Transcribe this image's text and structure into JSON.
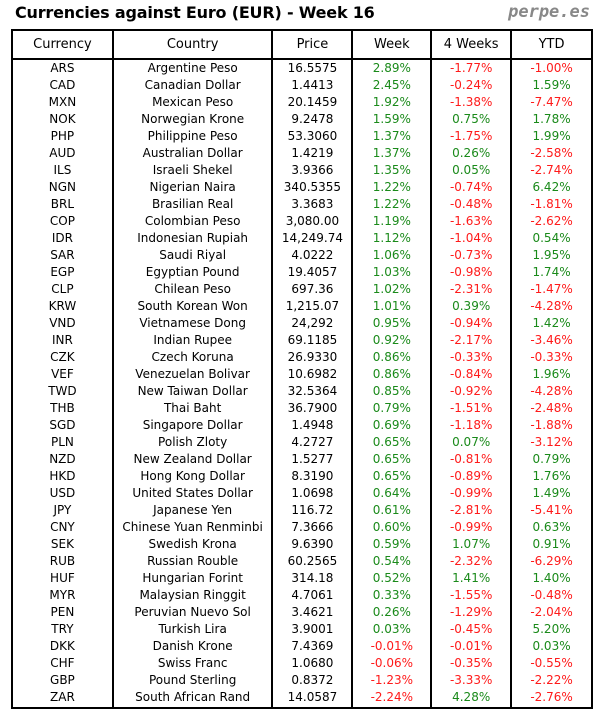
{
  "title": "Currencies against Euro (EUR) - Week 16",
  "brand": "perpe.es",
  "colors": {
    "positive": "#1a8a1a",
    "negative": "#ff1a1a",
    "text": "#000000"
  },
  "columns": [
    "Currency",
    "Country",
    "Price",
    "Week",
    "4 Weeks",
    "YTD"
  ],
  "rows": [
    [
      "ARS",
      "Argentine Peso",
      "16.5575",
      "2.89%",
      "-1.77%",
      "-1.00%"
    ],
    [
      "CAD",
      "Canadian Dollar",
      "1.4413",
      "2.45%",
      "-0.24%",
      "1.59%"
    ],
    [
      "MXN",
      "Mexican Peso",
      "20.1459",
      "1.92%",
      "-1.38%",
      "-7.47%"
    ],
    [
      "NOK",
      "Norwegian Krone",
      "9.2478",
      "1.59%",
      "0.75%",
      "1.78%"
    ],
    [
      "PHP",
      "Philippine Peso",
      "53.3060",
      "1.37%",
      "-1.75%",
      "1.99%"
    ],
    [
      "AUD",
      "Australian Dollar",
      "1.4219",
      "1.37%",
      "0.26%",
      "-2.58%"
    ],
    [
      "ILS",
      "Israeli Shekel",
      "3.9366",
      "1.35%",
      "0.05%",
      "-2.74%"
    ],
    [
      "NGN",
      "Nigerian Naira",
      "340.5355",
      "1.22%",
      "-0.74%",
      "6.42%"
    ],
    [
      "BRL",
      "Brasilian Real",
      "3.3683",
      "1.22%",
      "-0.48%",
      "-1.81%"
    ],
    [
      "COP",
      "Colombian Peso",
      "3,080.00",
      "1.19%",
      "-1.63%",
      "-2.62%"
    ],
    [
      "IDR",
      "Indonesian Rupiah",
      "14,249.74",
      "1.12%",
      "-1.04%",
      "0.54%"
    ],
    [
      "SAR",
      "Saudi Riyal",
      "4.0222",
      "1.06%",
      "-0.73%",
      "1.95%"
    ],
    [
      "EGP",
      "Egyptian Pound",
      "19.4057",
      "1.03%",
      "-0.98%",
      "1.74%"
    ],
    [
      "CLP",
      "Chilean Peso",
      "697.36",
      "1.02%",
      "-2.31%",
      "-1.47%"
    ],
    [
      "KRW",
      "South Korean Won",
      "1,215.07",
      "1.01%",
      "0.39%",
      "-4.28%"
    ],
    [
      "VND",
      "Vietnamese Dong",
      "24,292",
      "0.95%",
      "-0.94%",
      "1.42%"
    ],
    [
      "INR",
      "Indian Rupee",
      "69.1185",
      "0.92%",
      "-2.17%",
      "-3.46%"
    ],
    [
      "CZK",
      "Czech Koruna",
      "26.9330",
      "0.86%",
      "-0.33%",
      "-0.33%"
    ],
    [
      "VEF",
      "Venezuelan Bolivar",
      "10.6982",
      "0.86%",
      "-0.84%",
      "1.96%"
    ],
    [
      "TWD",
      "New Taiwan Dollar",
      "32.5364",
      "0.85%",
      "-0.92%",
      "-4.28%"
    ],
    [
      "THB",
      "Thai Baht",
      "36.7900",
      "0.79%",
      "-1.51%",
      "-2.48%"
    ],
    [
      "SGD",
      "Singapore Dollar",
      "1.4948",
      "0.69%",
      "-1.18%",
      "-1.88%"
    ],
    [
      "PLN",
      "Polish Zloty",
      "4.2727",
      "0.65%",
      "0.07%",
      "-3.12%"
    ],
    [
      "NZD",
      "New Zealand Dollar",
      "1.5277",
      "0.65%",
      "-0.81%",
      "0.79%"
    ],
    [
      "HKD",
      "Hong Kong Dollar",
      "8.3190",
      "0.65%",
      "-0.89%",
      "1.76%"
    ],
    [
      "USD",
      "United States Dollar",
      "1.0698",
      "0.64%",
      "-0.99%",
      "1.49%"
    ],
    [
      "JPY",
      "Japanese Yen",
      "116.72",
      "0.61%",
      "-2.81%",
      "-5.41%"
    ],
    [
      "CNY",
      "Chinese Yuan Renminbi",
      "7.3666",
      "0.60%",
      "-0.99%",
      "0.63%"
    ],
    [
      "SEK",
      "Swedish Krona",
      "9.6390",
      "0.59%",
      "1.07%",
      "0.91%"
    ],
    [
      "RUB",
      "Russian Rouble",
      "60.2565",
      "0.54%",
      "-2.32%",
      "-6.29%"
    ],
    [
      "HUF",
      "Hungarian Forint",
      "314.18",
      "0.52%",
      "1.41%",
      "1.40%"
    ],
    [
      "MYR",
      "Malaysian Ringgit",
      "4.7061",
      "0.33%",
      "-1.55%",
      "-0.48%"
    ],
    [
      "PEN",
      "Peruvian Nuevo Sol",
      "3.4621",
      "0.26%",
      "-1.29%",
      "-2.04%"
    ],
    [
      "TRY",
      "Turkish Lira",
      "3.9001",
      "0.03%",
      "-0.45%",
      "5.20%"
    ],
    [
      "DKK",
      "Danish Krone",
      "7.4369",
      "-0.01%",
      "-0.01%",
      "0.03%"
    ],
    [
      "CHF",
      "Swiss Franc",
      "1.0680",
      "-0.06%",
      "-0.35%",
      "-0.55%"
    ],
    [
      "GBP",
      "Pound Sterling",
      "0.8372",
      "-1.23%",
      "-3.33%",
      "-2.22%"
    ],
    [
      "ZAR",
      "South African Rand",
      "14.0587",
      "-2.24%",
      "4.28%",
      "-2.76%"
    ]
  ]
}
